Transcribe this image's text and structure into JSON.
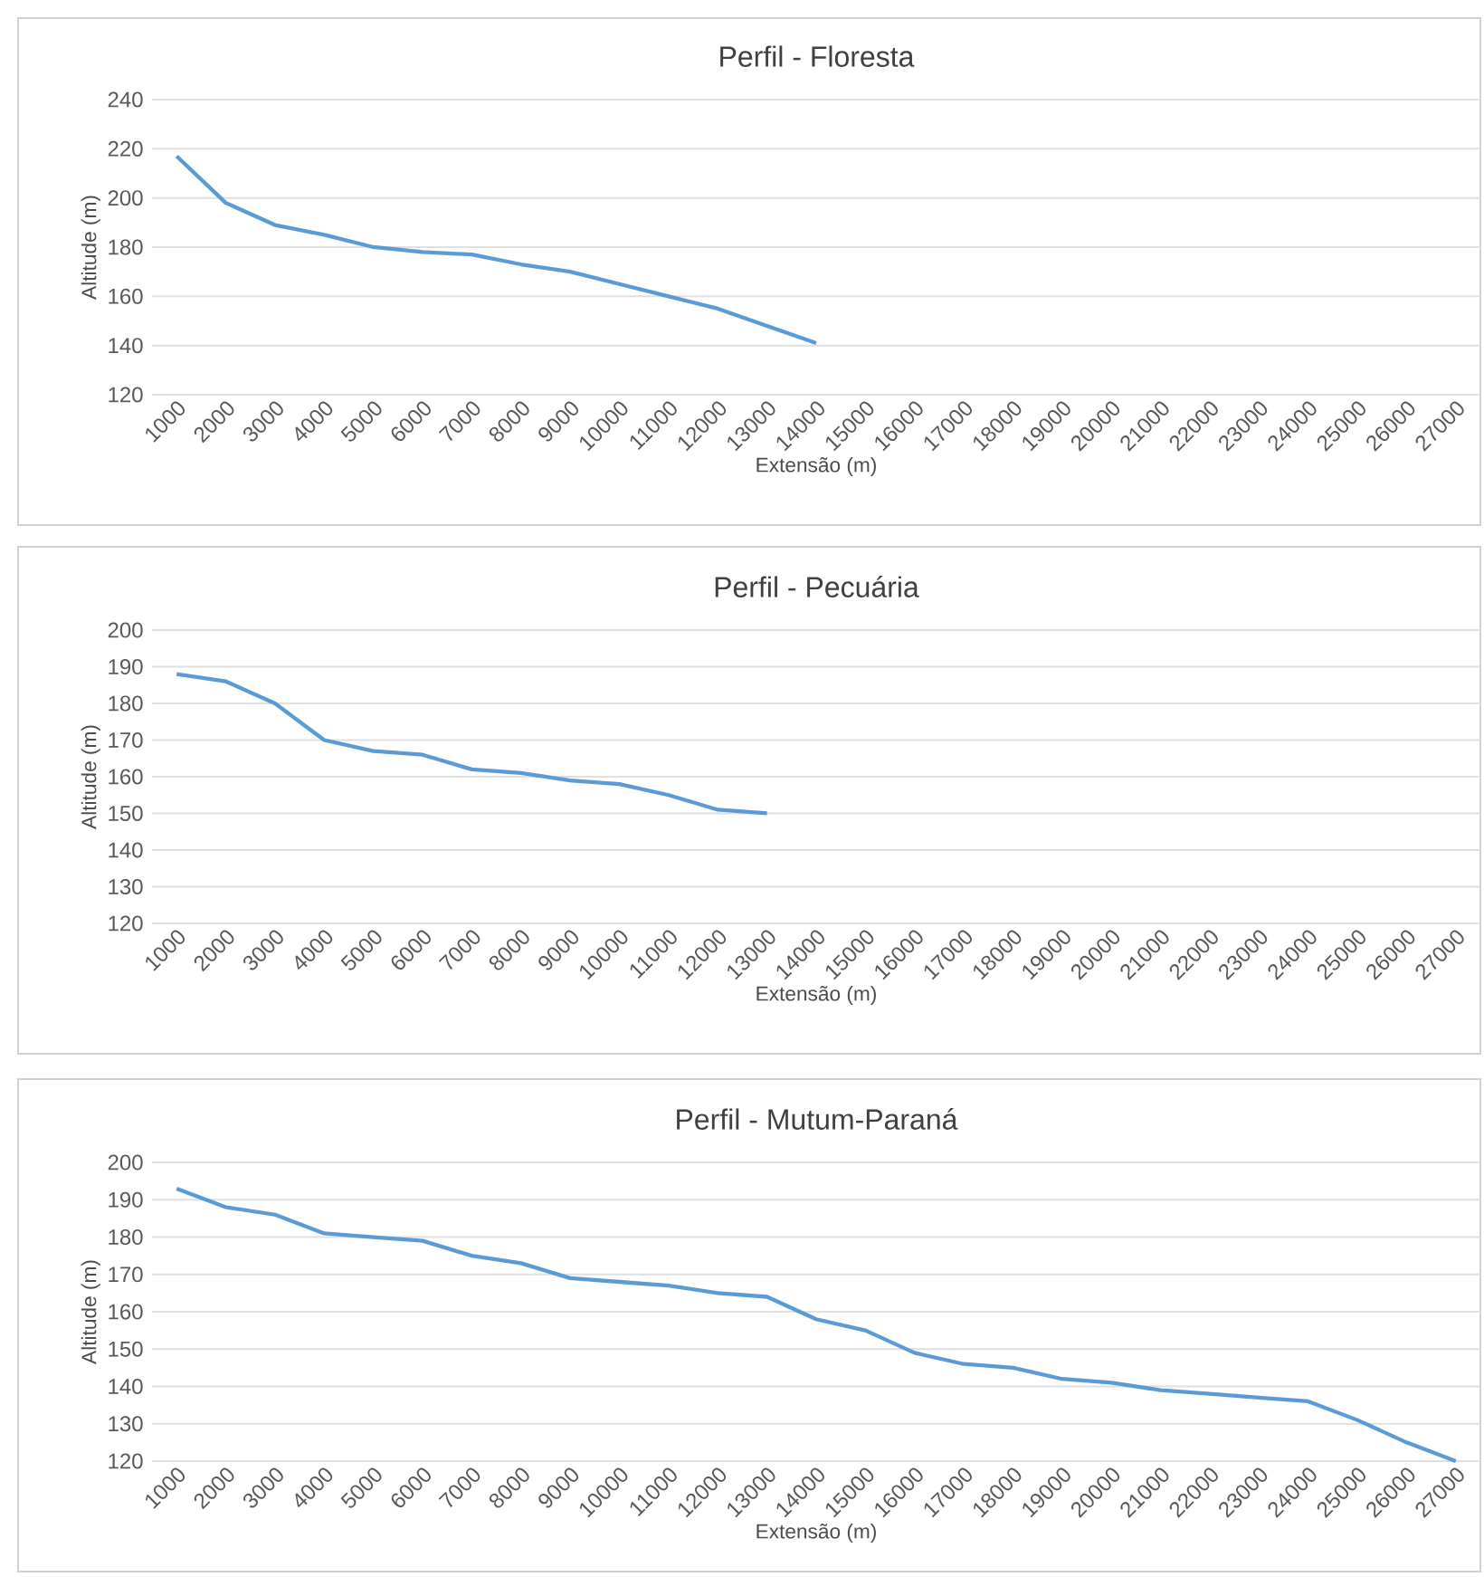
{
  "chart_data": [
    {
      "type": "line",
      "title": "Perfil - Floresta",
      "xlabel": "Extensão (m)",
      "ylabel": "Altitude (m)",
      "categories": [
        "1000",
        "2000",
        "3000",
        "4000",
        "5000",
        "6000",
        "7000",
        "8000",
        "9000",
        "10000",
        "11000",
        "12000",
        "13000",
        "14000",
        "15000",
        "16000",
        "17000",
        "18000",
        "19000",
        "20000",
        "21000",
        "22000",
        "23000",
        "24000",
        "25000",
        "26000",
        "27000"
      ],
      "values": [
        217,
        198,
        189,
        185,
        180,
        178,
        177,
        173,
        170,
        165,
        160,
        155,
        148,
        141,
        null,
        null,
        null,
        null,
        null,
        null,
        null,
        null,
        null,
        null,
        null,
        null,
        null
      ],
      "color": "#5b9bd5",
      "ylim": [
        120,
        240
      ],
      "yticks": [
        120,
        140,
        160,
        180,
        200,
        220,
        240
      ],
      "grid": "y"
    },
    {
      "type": "line",
      "title": "Perfil - Pecuária",
      "xlabel": "Extensão (m)",
      "ylabel": "Altitude (m)",
      "categories": [
        "1000",
        "2000",
        "3000",
        "4000",
        "5000",
        "6000",
        "7000",
        "8000",
        "9000",
        "10000",
        "11000",
        "12000",
        "13000",
        "14000",
        "15000",
        "16000",
        "17000",
        "18000",
        "19000",
        "20000",
        "21000",
        "22000",
        "23000",
        "24000",
        "25000",
        "26000",
        "27000"
      ],
      "values": [
        188,
        186,
        180,
        170,
        167,
        166,
        162,
        161,
        159,
        158,
        155,
        151,
        150,
        null,
        null,
        null,
        null,
        null,
        null,
        null,
        null,
        null,
        null,
        null,
        null,
        null,
        null
      ],
      "color": "#5b9bd5",
      "ylim": [
        120,
        200
      ],
      "yticks": [
        120,
        130,
        140,
        150,
        160,
        170,
        180,
        190,
        200
      ],
      "grid": "y"
    },
    {
      "type": "line",
      "title": "Perfil - Mutum-Paraná",
      "xlabel": "Extensão (m)",
      "ylabel": "Altitude (m)",
      "categories": [
        "1000",
        "2000",
        "3000",
        "4000",
        "5000",
        "6000",
        "7000",
        "8000",
        "9000",
        "10000",
        "11000",
        "12000",
        "13000",
        "14000",
        "15000",
        "16000",
        "17000",
        "18000",
        "19000",
        "20000",
        "21000",
        "22000",
        "23000",
        "24000",
        "25000",
        "26000",
        "27000"
      ],
      "values": [
        193,
        188,
        186,
        181,
        180,
        179,
        175,
        173,
        169,
        168,
        167,
        165,
        164,
        158,
        155,
        149,
        146,
        145,
        142,
        141,
        139,
        138,
        137,
        136,
        131,
        125,
        120
      ],
      "color": "#5b9bd5",
      "ylim": [
        120,
        200
      ],
      "yticks": [
        120,
        130,
        140,
        150,
        160,
        170,
        180,
        190,
        200
      ],
      "grid": "y"
    }
  ]
}
